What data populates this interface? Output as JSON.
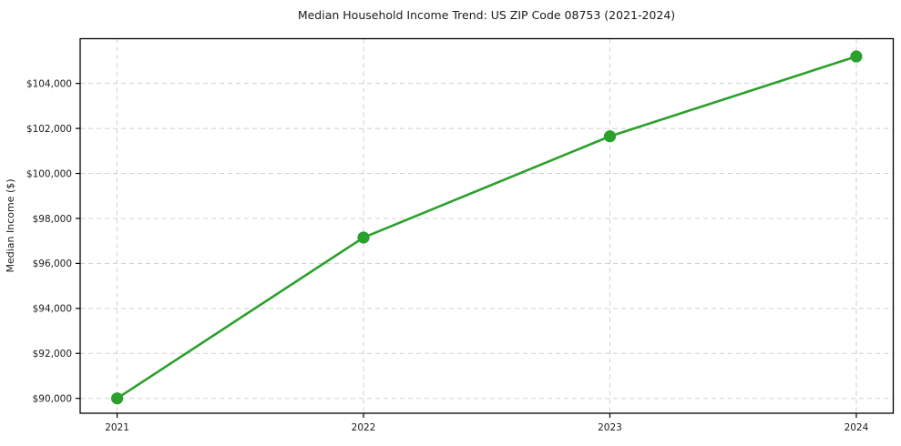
{
  "chart_data": {
    "type": "line",
    "title": "Median Household Income Trend: US ZIP Code 08753 (2021-2024)",
    "xlabel": "",
    "ylabel": "Median Income ($)",
    "x": [
      2021,
      2022,
      2023,
      2024
    ],
    "values": [
      90000,
      97150,
      101650,
      105200
    ],
    "xticks": [
      {
        "value": 2021,
        "label": "2021"
      },
      {
        "value": 2022,
        "label": "2022"
      },
      {
        "value": 2023,
        "label": "2023"
      },
      {
        "value": 2024,
        "label": "2024"
      }
    ],
    "yticks": [
      {
        "value": 90000,
        "label": "$90,000"
      },
      {
        "value": 92000,
        "label": "$92,000"
      },
      {
        "value": 94000,
        "label": "$94,000"
      },
      {
        "value": 96000,
        "label": "$96,000"
      },
      {
        "value": 98000,
        "label": "$98,000"
      },
      {
        "value": 100000,
        "label": "$100,000"
      },
      {
        "value": 102000,
        "label": "$102,000"
      },
      {
        "value": 104000,
        "label": "$104,000"
      }
    ],
    "xlim": [
      2020.85,
      2024.15
    ],
    "ylim": [
      89340,
      105990
    ],
    "grid": {
      "visible": true,
      "style": "dashed",
      "color": "#cfcfcf"
    },
    "legend": "none",
    "line_color": "#2ca02c",
    "marker_color": "#2ca02c",
    "axis_color": "#000000",
    "text_color": "#1a1a1a",
    "background_color": "#ffffff"
  }
}
